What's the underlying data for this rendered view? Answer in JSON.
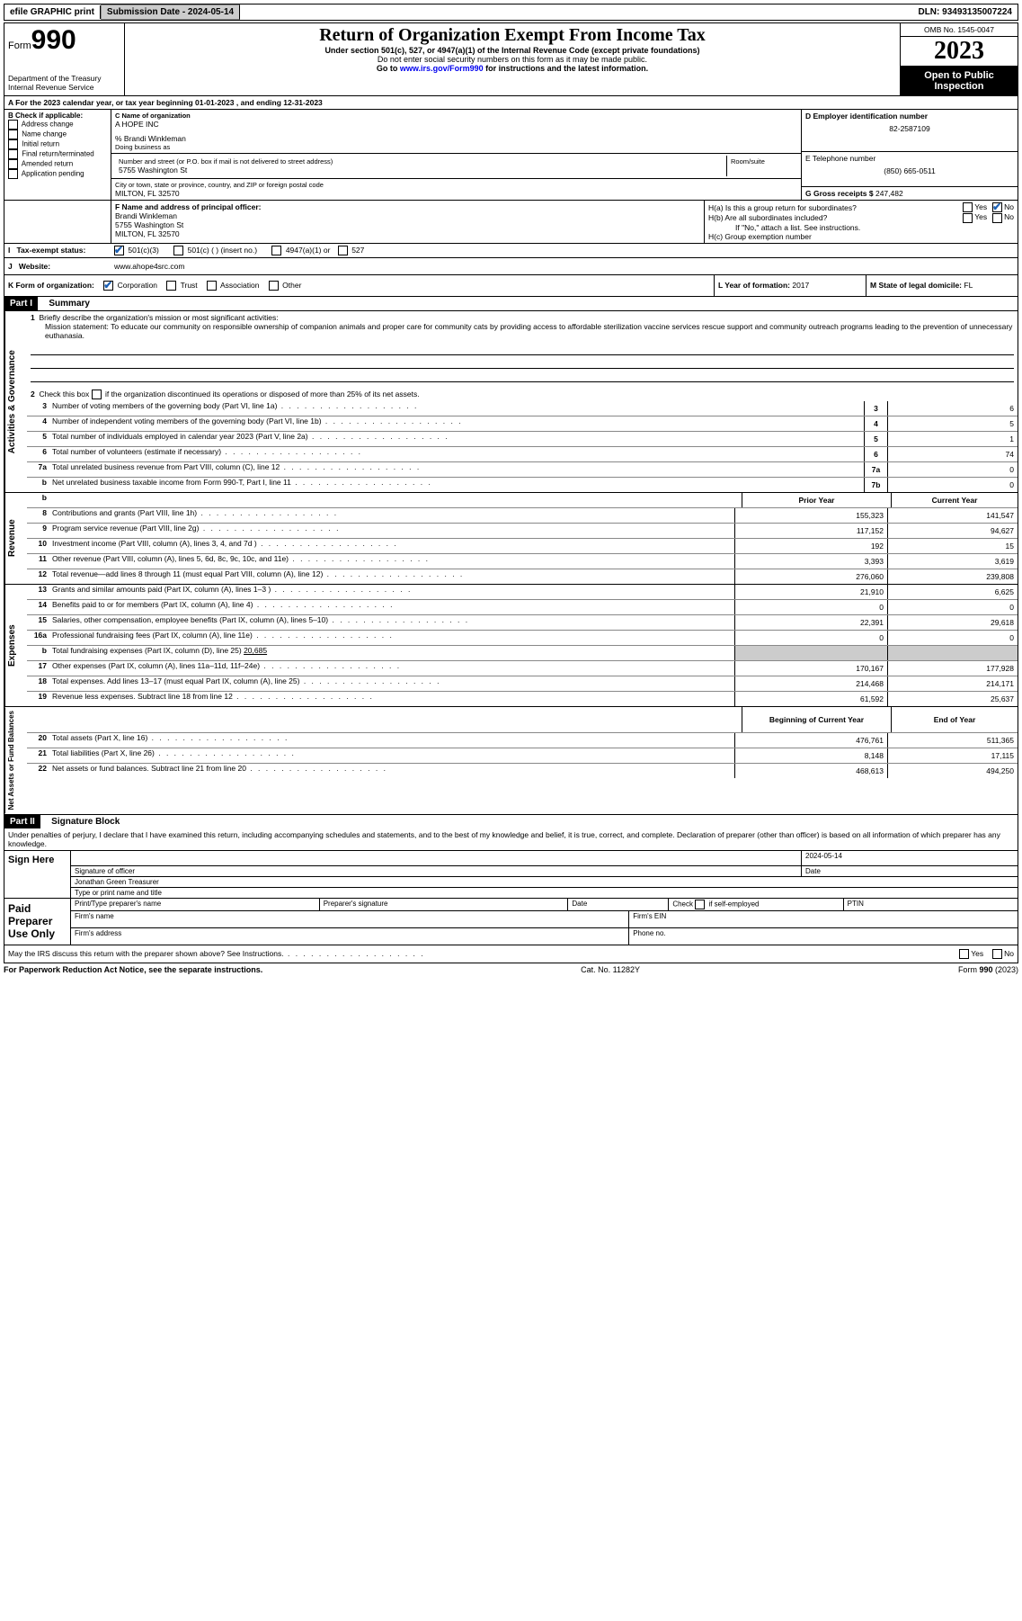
{
  "topbar": {
    "efile": "efile GRAPHIC print",
    "submission_label": "Submission Date - 2024-05-14",
    "dln_label": "DLN: 93493135007224"
  },
  "header": {
    "form_prefix": "Form",
    "form_number": "990",
    "dept": "Department of the Treasury",
    "irs": "Internal Revenue Service",
    "title": "Return of Organization Exempt From Income Tax",
    "subtitle": "Under section 501(c), 527, or 4947(a)(1) of the Internal Revenue Code (except private foundations)",
    "warn": "Do not enter social security numbers on this form as it may be made public.",
    "goto_prefix": "Go to ",
    "goto_link": "www.irs.gov/Form990",
    "goto_suffix": " for instructions and the latest information.",
    "omb": "OMB No. 1545-0047",
    "year": "2023",
    "inspect1": "Open to Public",
    "inspect2": "Inspection"
  },
  "period": {
    "a_label": "A For the 2023 calendar year, or tax year beginning ",
    "begin": "01-01-2023",
    "mid": " , and ending ",
    "end": "12-31-2023"
  },
  "block_b": {
    "header": "B Check if applicable:",
    "opts": [
      "Address change",
      "Name change",
      "Initial return",
      "Final return/terminated",
      "Amended return",
      "Application pending"
    ]
  },
  "block_c": {
    "name_label": "C Name of organization",
    "name": "A HOPE INC",
    "care_of": "% Brandi Winkleman",
    "dba_label": "Doing business as",
    "street_label": "Number and street (or P.O. box if mail is not delivered to street address)",
    "room_label": "Room/suite",
    "street": "5755 Washington St",
    "city_label": "City or town, state or province, country, and ZIP or foreign postal code",
    "city": "MILTON, FL  32570"
  },
  "block_d": {
    "label": "D Employer identification number",
    "value": "82-2587109"
  },
  "block_e": {
    "label": "E Telephone number",
    "value": "(850) 665-0511"
  },
  "block_g": {
    "label": "G Gross receipts $",
    "value": "247,482"
  },
  "block_f": {
    "label": "F Name and address of principal officer:",
    "name": "Brandi Winkleman",
    "street": "5755 Washington St",
    "city": "MILTON, FL  32570"
  },
  "block_h": {
    "a": "H(a)  Is this a group return for subordinates?",
    "b": "H(b)  Are all subordinates included?",
    "b_note": "If \"No,\" attach a list. See instructions.",
    "c": "H(c)  Group exemption number "
  },
  "block_i": {
    "label": "Tax-exempt status:",
    "opt1": "501(c)(3)",
    "opt2": "501(c) (  ) (insert no.)",
    "opt3": "4947(a)(1) or",
    "opt4": "527"
  },
  "block_j": {
    "label": "Website:",
    "value": "www.ahope4src.com"
  },
  "block_k": {
    "label": "K Form of organization:",
    "opts": [
      "Corporation",
      "Trust",
      "Association",
      "Other"
    ]
  },
  "block_l": {
    "label": "L Year of formation: ",
    "value": "2017"
  },
  "block_m": {
    "label": "M State of legal domicile: ",
    "value": "FL"
  },
  "yes": "Yes",
  "no": "No",
  "part1": {
    "header": "Part I",
    "title": "Summary",
    "sections": {
      "gov": "Activities & Governance",
      "rev": "Revenue",
      "exp": "Expenses",
      "net": "Net Assets or Fund Balances"
    },
    "line1_label": "Briefly describe the organization's mission or most significant activities:",
    "mission": "Mission statement: To educate our community on responsible ownership of companion animals and proper care for community cats by providing access to affordable sterilization vaccine services rescue support and community outreach programs leading to the prevention of unnecessary euthanasia.",
    "line2": "Check this box      if the organization discontinued its operations or disposed of more than 25% of its net assets.",
    "lines_gov": [
      {
        "n": "3",
        "d": "Number of voting members of the governing body (Part VI, line 1a)",
        "box": "3",
        "v": "6"
      },
      {
        "n": "4",
        "d": "Number of independent voting members of the governing body (Part VI, line 1b)",
        "box": "4",
        "v": "5"
      },
      {
        "n": "5",
        "d": "Total number of individuals employed in calendar year 2023 (Part V, line 2a)",
        "box": "5",
        "v": "1"
      },
      {
        "n": "6",
        "d": "Total number of volunteers (estimate if necessary)",
        "box": "6",
        "v": "74"
      },
      {
        "n": "7a",
        "d": "Total unrelated business revenue from Part VIII, column (C), line 12",
        "box": "7a",
        "v": "0"
      },
      {
        "n": "b",
        "d": "Net unrelated business taxable income from Form 990-T, Part I, line 11",
        "box": "7b",
        "v": "0"
      }
    ],
    "col_prior": "Prior Year",
    "col_current": "Current Year",
    "lines_rev": [
      {
        "n": "8",
        "d": "Contributions and grants (Part VIII, line 1h)",
        "p": "155,323",
        "c": "141,547"
      },
      {
        "n": "9",
        "d": "Program service revenue (Part VIII, line 2g)",
        "p": "117,152",
        "c": "94,627"
      },
      {
        "n": "10",
        "d": "Investment income (Part VIII, column (A), lines 3, 4, and 7d )",
        "p": "192",
        "c": "15"
      },
      {
        "n": "11",
        "d": "Other revenue (Part VIII, column (A), lines 5, 6d, 8c, 9c, 10c, and 11e)",
        "p": "3,393",
        "c": "3,619"
      },
      {
        "n": "12",
        "d": "Total revenue—add lines 8 through 11 (must equal Part VIII, column (A), line 12)",
        "p": "276,060",
        "c": "239,808"
      }
    ],
    "lines_exp": [
      {
        "n": "13",
        "d": "Grants and similar amounts paid (Part IX, column (A), lines 1–3 )",
        "p": "21,910",
        "c": "6,625"
      },
      {
        "n": "14",
        "d": "Benefits paid to or for members (Part IX, column (A), line 4)",
        "p": "0",
        "c": "0"
      },
      {
        "n": "15",
        "d": "Salaries, other compensation, employee benefits (Part IX, column (A), lines 5–10)",
        "p": "22,391",
        "c": "29,618"
      },
      {
        "n": "16a",
        "d": "Professional fundraising fees (Part IX, column (A), line 11e)",
        "p": "0",
        "c": "0"
      }
    ],
    "line16b": {
      "n": "b",
      "d": "Total fundraising expenses (Part IX, column (D), line 25) ",
      "v": "20,685"
    },
    "lines_exp2": [
      {
        "n": "17",
        "d": "Other expenses (Part IX, column (A), lines 11a–11d, 11f–24e)",
        "p": "170,167",
        "c": "177,928"
      },
      {
        "n": "18",
        "d": "Total expenses. Add lines 13–17 (must equal Part IX, column (A), line 25)",
        "p": "214,468",
        "c": "214,171"
      },
      {
        "n": "19",
        "d": "Revenue less expenses. Subtract line 18 from line 12",
        "p": "61,592",
        "c": "25,637"
      }
    ],
    "col_begin": "Beginning of Current Year",
    "col_end": "End of Year",
    "lines_net": [
      {
        "n": "20",
        "d": "Total assets (Part X, line 16)",
        "p": "476,761",
        "c": "511,365"
      },
      {
        "n": "21",
        "d": "Total liabilities (Part X, line 26)",
        "p": "8,148",
        "c": "17,115"
      },
      {
        "n": "22",
        "d": "Net assets or fund balances. Subtract line 21 from line 20",
        "p": "468,613",
        "c": "494,250"
      }
    ]
  },
  "part2": {
    "header": "Part II",
    "title": "Signature Block",
    "perjury": "Under penalties of perjury, I declare that I have examined this return, including accompanying schedules and statements, and to the best of my knowledge and belief, it is true, correct, and complete. Declaration of preparer (other than officer) is based on all information of which preparer has any knowledge.",
    "sign_here": "Sign Here",
    "sig_officer": "Signature of officer",
    "sig_name": "Jonathan Green  Treasurer",
    "sig_type": "Type or print name and title",
    "sig_date_label": "Date",
    "sig_date": "2024-05-14",
    "paid": "Paid Preparer Use Only",
    "prep_name": "Print/Type preparer's name",
    "prep_sig": "Preparer's signature",
    "prep_date": "Date",
    "self_emp": "Check       if self-employed",
    "ptin": "PTIN",
    "firm_name": "Firm's name",
    "firm_ein": "Firm's EIN",
    "firm_addr": "Firm's address",
    "phone": "Phone no.",
    "discuss": "May the IRS discuss this return with the preparer shown above? See Instructions."
  },
  "footer": {
    "left": "For Paperwork Reduction Act Notice, see the separate instructions.",
    "mid": "Cat. No. 11282Y",
    "right_prefix": "Form ",
    "right_form": "990",
    "right_suffix": " (2023)"
  }
}
